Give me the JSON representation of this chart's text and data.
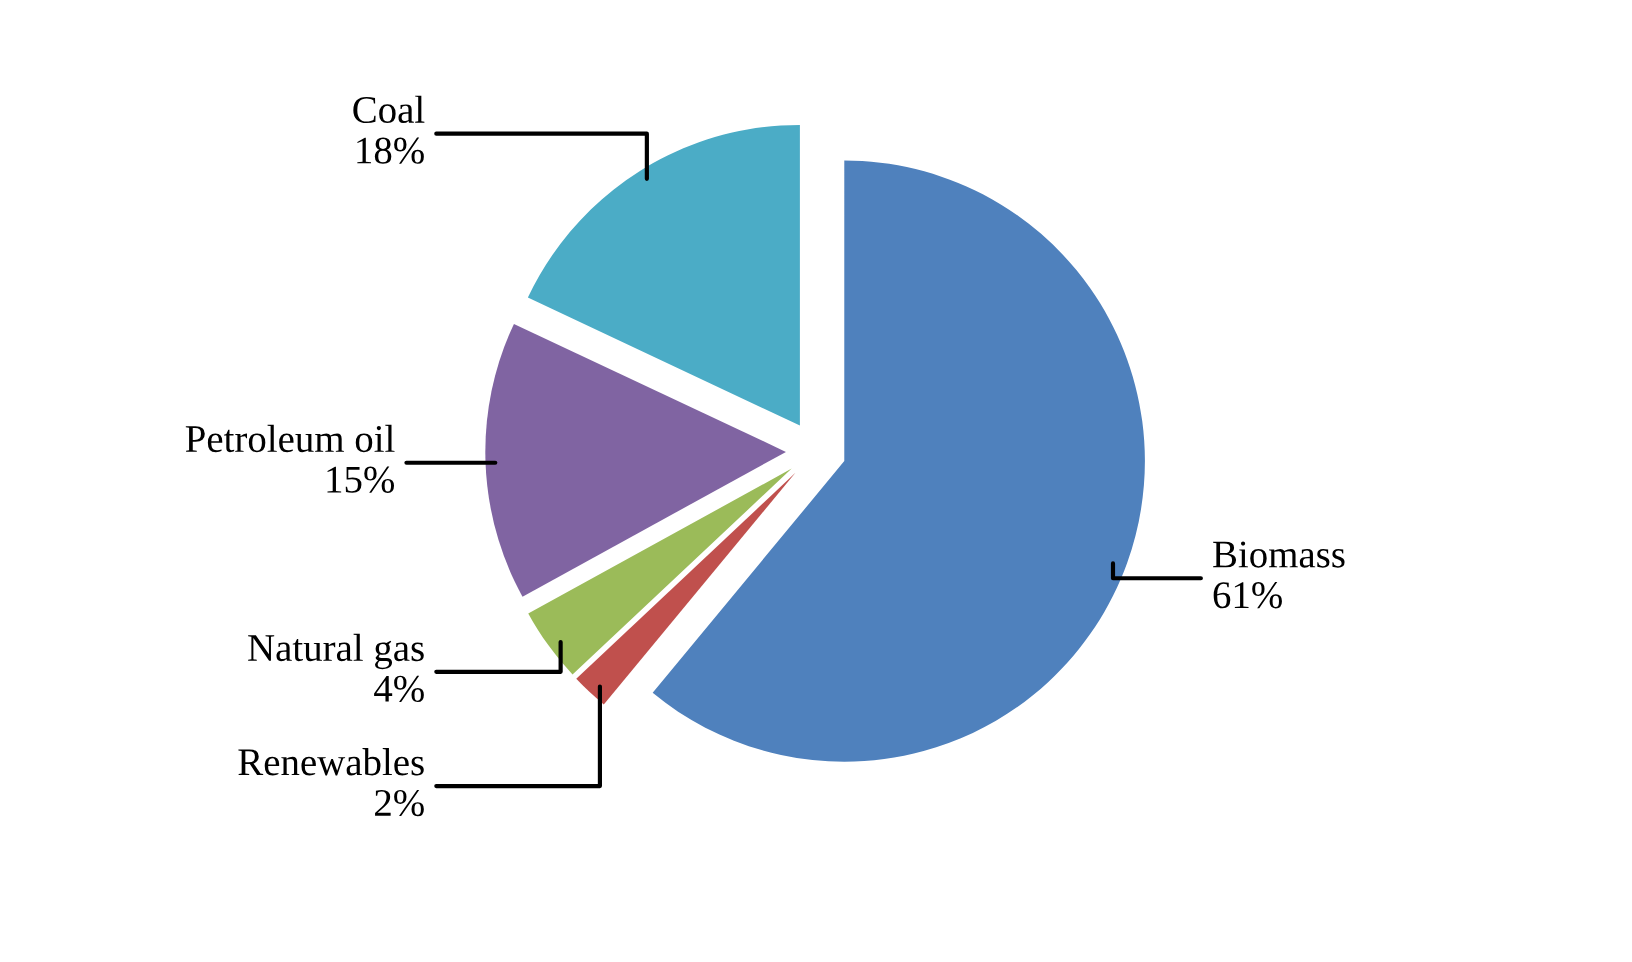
{
  "chart_data": {
    "type": "pie",
    "categories": [
      "Biomass",
      "Renewables",
      "Natural gas",
      "Petroleum oil",
      "Coal"
    ],
    "values": [
      61,
      2,
      4,
      15,
      18
    ],
    "value_labels": [
      "61%",
      "2%",
      "4%",
      "15%",
      "18%"
    ],
    "colors": [
      "#4f81bd",
      "#c0504d",
      "#9bbb59",
      "#8064a2",
      "#4bacc6"
    ],
    "legend": false
  }
}
